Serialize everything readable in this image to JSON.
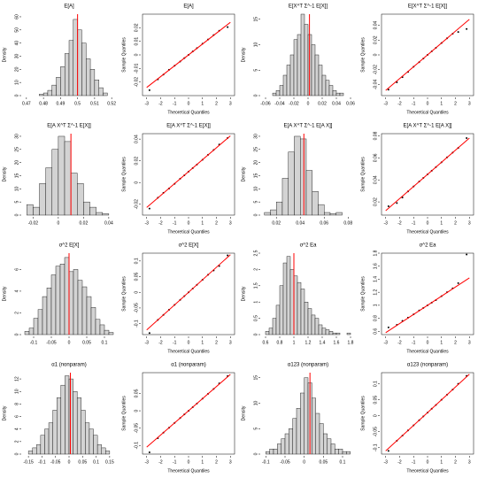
{
  "chart_data": [
    {
      "type": "histogram",
      "title": "E[A]",
      "ylabel": "Density",
      "bins": [
        0.4775,
        0.48,
        0.4825,
        0.485,
        0.4875,
        0.49,
        0.4925,
        0.495,
        0.4975,
        0.5,
        0.5025,
        0.505,
        0.5075,
        0.51,
        0.5125,
        0.515,
        0.5175
      ],
      "counts": [
        1,
        2,
        4,
        8,
        14,
        22,
        32,
        42,
        58,
        50,
        40,
        28,
        20,
        12,
        6,
        2
      ],
      "color": "#d3d3d3",
      "vline": 0.5,
      "vline_color": "#ff0000",
      "xlim": [
        0.468,
        0.522
      ],
      "xticks": [
        0.47,
        0.48,
        0.49,
        0.5,
        0.51,
        0.52
      ],
      "ylim": [
        0,
        62
      ],
      "yticks": [
        0,
        10,
        20,
        30,
        40,
        50,
        60
      ]
    },
    {
      "type": "scatter",
      "title": "E[A]",
      "xlabel": "Theoretical Quantiles",
      "ylabel": "Sample Quantiles",
      "x": [
        -2.8,
        -2.2,
        -1.8,
        -1.4,
        -1,
        -0.6,
        -0.3,
        0,
        0.3,
        0.6,
        1,
        1.4,
        1.8,
        2.2,
        2.8
      ],
      "y": [
        -0.026,
        -0.018,
        -0.0145,
        -0.011,
        -0.008,
        -0.0049,
        -0.0024,
        0,
        0.0025,
        0.005,
        0.0082,
        0.0113,
        0.0146,
        0.0178,
        0.0205
      ],
      "ref_line": {
        "x": [
          -3,
          3
        ],
        "y": [
          -0.024,
          0.024
        ],
        "color": "#ff0000"
      },
      "xlim": [
        -3.3,
        3.3
      ],
      "xticks": [
        -3,
        -2,
        -1,
        0,
        1,
        2,
        3
      ],
      "ylim": [
        -0.03,
        0.03
      ],
      "yticks": [
        -0.02,
        -0.01,
        0,
        0.01,
        0.02
      ]
    },
    {
      "type": "histogram",
      "title": "E[X^T Σ^-1 E[X]]",
      "ylabel": "Density",
      "bins": [
        -0.05,
        -0.045,
        -0.04,
        -0.035,
        -0.03,
        -0.025,
        -0.02,
        -0.015,
        -0.01,
        -0.005,
        0,
        0.005,
        0.01,
        0.015,
        0.02,
        0.025,
        0.03,
        0.035,
        0.04,
        0.045,
        0.05
      ],
      "counts": [
        0.5,
        1,
        2,
        4,
        6,
        8,
        11,
        12,
        16,
        14,
        12,
        10,
        8,
        6,
        4,
        3,
        2,
        1,
        0.5,
        0.5
      ],
      "color": "#d3d3d3",
      "vline": 0.002,
      "vline_color": "#ff0000",
      "xlim": [
        -0.065,
        0.065
      ],
      "xticks": [
        -0.06,
        -0.04,
        -0.02,
        0,
        0.02,
        0.04,
        0.06
      ],
      "ylim": [
        0,
        16
      ],
      "yticks": [
        0,
        5,
        10,
        15
      ]
    },
    {
      "type": "scatter",
      "title": "E[X^T Σ^-1 E[X]]",
      "xlabel": "Theoretical Quantiles",
      "ylabel": "Sample Quantiles",
      "x": [
        -2.8,
        -2.2,
        -1.8,
        -1.4,
        -1,
        -0.6,
        -0.3,
        0,
        0.3,
        0.6,
        1,
        1.4,
        1.8,
        2.2,
        2.8
      ],
      "y": [
        -0.047,
        -0.037,
        -0.03,
        -0.023,
        -0.016,
        -0.0098,
        -0.0049,
        0,
        0.0048,
        0.0096,
        0.016,
        0.0224,
        0.0285,
        0.031,
        0.035
      ],
      "ref_line": {
        "x": [
          -3,
          3
        ],
        "y": [
          -0.048,
          0.048
        ],
        "color": "#ff0000"
      },
      "xlim": [
        -3.3,
        3.3
      ],
      "xticks": [
        -3,
        -2,
        -1,
        0,
        1,
        2,
        3
      ],
      "ylim": [
        -0.055,
        0.055
      ],
      "yticks": [
        -0.04,
        -0.02,
        0,
        0.02,
        0.04
      ]
    },
    {
      "type": "histogram",
      "title": "E[A X^T Σ^-1 E[X]]",
      "ylabel": "Density",
      "bins": [
        -0.025,
        -0.02,
        -0.015,
        -0.01,
        -0.005,
        0,
        0.005,
        0.01,
        0.015,
        0.02,
        0.025,
        0.03,
        0.035,
        0.04
      ],
      "counts": [
        4,
        3,
        12,
        18,
        25,
        30,
        28,
        16,
        12,
        5,
        3,
        1,
        0.5
      ],
      "color": "#d3d3d3",
      "vline": 0.01,
      "vline_color": "#ff0000",
      "xlim": [
        -0.028,
        0.045
      ],
      "xticks": [
        -0.02,
        0,
        0.02,
        0.04
      ],
      "ylim": [
        0,
        31
      ],
      "yticks": [
        0,
        5,
        10,
        15,
        20,
        25,
        30
      ]
    },
    {
      "type": "scatter",
      "title": "E[A X^T Σ^-1 E[X]]",
      "xlabel": "Theoretical Quantiles",
      "ylabel": "Sample Quantiles",
      "x": [
        -2.8,
        -2.2,
        -1.8,
        -1.4,
        -1,
        -0.6,
        -0.3,
        0,
        0.3,
        0.6,
        1,
        1.4,
        1.8,
        2.2,
        2.8
      ],
      "y": [
        -0.024,
        -0.014,
        -0.0095,
        -0.0055,
        -0.0012,
        0.0035,
        0.0067,
        0.01,
        0.0133,
        0.0166,
        0.021,
        0.0255,
        0.03,
        0.035,
        0.041
      ],
      "ref_line": {
        "x": [
          -3,
          3
        ],
        "y": [
          -0.023,
          0.043
        ],
        "color": "#ff0000"
      },
      "xlim": [
        -3.3,
        3.3
      ],
      "xticks": [
        -3,
        -2,
        -1,
        0,
        1,
        2,
        3
      ],
      "ylim": [
        -0.03,
        0.045
      ],
      "yticks": [
        -0.02,
        0,
        0.02,
        0.04
      ]
    },
    {
      "type": "histogram",
      "title": "E[A X^T Σ^-1 E[A X]]",
      "ylabel": "Density",
      "bins": [
        0.01,
        0.015,
        0.02,
        0.025,
        0.03,
        0.035,
        0.04,
        0.045,
        0.05,
        0.055,
        0.06,
        0.065,
        0.07,
        0.075
      ],
      "counts": [
        1,
        2,
        5,
        14,
        24,
        30,
        29,
        17,
        9,
        4,
        1,
        0.5,
        1
      ],
      "color": "#d3d3d3",
      "vline": 0.043,
      "vline_color": "#ff0000",
      "xlim": [
        0.008,
        0.085
      ],
      "xticks": [
        0.02,
        0.04,
        0.06,
        0.08
      ],
      "ylim": [
        0,
        31
      ],
      "yticks": [
        0,
        5,
        10,
        15,
        20,
        25,
        30
      ]
    },
    {
      "type": "scatter",
      "title": "E[A X^T Σ^-1 E[A X]]",
      "xlabel": "Theoretical Quantiles",
      "ylabel": "Sample Quantiles",
      "x": [
        -2.8,
        -2.2,
        -1.8,
        -1.4,
        -1,
        -0.6,
        -0.3,
        0,
        0.3,
        0.6,
        1,
        1.4,
        1.8,
        2.2,
        2.8
      ],
      "y": [
        0.016,
        0.019,
        0.024,
        0.0295,
        0.034,
        0.0385,
        0.0418,
        0.045,
        0.0483,
        0.0516,
        0.056,
        0.0605,
        0.0648,
        0.069,
        0.078
      ],
      "ref_line": {
        "x": [
          -3,
          3
        ],
        "y": [
          0.012,
          0.078
        ],
        "color": "#ff0000"
      },
      "xlim": [
        -3.3,
        3.3
      ],
      "xticks": [
        -3,
        -2,
        -1,
        0,
        1,
        2,
        3
      ],
      "ylim": [
        0.008,
        0.082
      ],
      "yticks": [
        0.02,
        0.04,
        0.06,
        0.08
      ]
    },
    {
      "type": "histogram",
      "title": "σ^2 E[X]",
      "ylabel": "Density",
      "bins": [
        -0.125,
        -0.1125,
        -0.1,
        -0.0875,
        -0.075,
        -0.0625,
        -0.05,
        -0.0375,
        -0.025,
        -0.0125,
        0,
        0.0125,
        0.025,
        0.0375,
        0.05,
        0.0625,
        0.075,
        0.0875,
        0.1,
        0.1125,
        0.125
      ],
      "counts": [
        0.3,
        0.6,
        1.5,
        2.3,
        3.5,
        4.3,
        5.5,
        6.3,
        6.5,
        7.1,
        5.8,
        6,
        5,
        4.4,
        3.5,
        2.5,
        1.4,
        0.9,
        0.4,
        0.2
      ],
      "color": "#d3d3d3",
      "vline": 0,
      "vline_color": "#ff0000",
      "xlim": [
        -0.13,
        0.13
      ],
      "xticks": [
        -0.1,
        -0.05,
        0,
        0.05,
        0.1
      ],
      "ylim": [
        0,
        7.5
      ],
      "yticks": [
        0,
        2,
        4,
        6
      ]
    },
    {
      "type": "scatter",
      "title": "σ^2 E[X]",
      "xlabel": "Theoretical Quantiles",
      "ylabel": "Sample Quantiles",
      "x": [
        -2.8,
        -2.2,
        -1.8,
        -1.4,
        -1,
        -0.6,
        -0.3,
        0,
        0.3,
        0.6,
        1,
        1.4,
        1.8,
        2.2,
        2.8
      ],
      "y": [
        -0.13,
        -0.088,
        -0.072,
        -0.056,
        -0.04,
        -0.024,
        -0.012,
        0,
        0.012,
        0.024,
        0.04,
        0.056,
        0.07,
        0.084,
        0.118
      ],
      "ref_line": {
        "x": [
          -3,
          3
        ],
        "y": [
          -0.12,
          0.12
        ],
        "color": "#ff0000"
      },
      "xlim": [
        -3.3,
        3.3
      ],
      "xticks": [
        -3,
        -2,
        -1,
        0,
        1,
        2,
        3
      ],
      "ylim": [
        -0.135,
        0.125
      ],
      "yticks": [
        -0.1,
        -0.05,
        0,
        0.05,
        0.1
      ]
    },
    {
      "type": "histogram",
      "title": "σ^2 Ea",
      "ylabel": "Density",
      "bins": [
        0.6,
        0.65,
        0.7,
        0.75,
        0.8,
        0.85,
        0.9,
        0.95,
        1,
        1.05,
        1.1,
        1.15,
        1.2,
        1.25,
        1.3,
        1.35,
        1.4,
        1.45,
        1.5,
        1.55,
        1.6,
        1.65,
        1.7,
        1.75,
        1.8
      ],
      "counts": [
        0.1,
        0.2,
        0.5,
        0.9,
        1.5,
        2.2,
        2.4,
        2,
        1.8,
        1.6,
        1.4,
        1,
        0.8,
        0.6,
        0.5,
        0.3,
        0.2,
        0.15,
        0.1,
        0.05,
        0.05,
        0,
        0,
        0.05
      ],
      "color": "#d3d3d3",
      "vline": 1,
      "vline_color": "#ff0000",
      "xlim": [
        0.55,
        1.85
      ],
      "xticks": [
        0.6,
        0.8,
        1,
        1.2,
        1.4,
        1.6,
        1.8
      ],
      "ylim": [
        0,
        2.5
      ],
      "yticks": [
        0,
        0.5,
        1,
        1.5,
        2,
        2.5
      ]
    },
    {
      "type": "scatter",
      "title": "σ^2 Ea",
      "xlabel": "Theoretical Quantiles",
      "ylabel": "Sample Quantiles",
      "x": [
        -2.8,
        -2.2,
        -1.8,
        -1.4,
        -1,
        -0.6,
        -0.3,
        0,
        0.3,
        0.6,
        1,
        1.4,
        1.8,
        2.2,
        2.8
      ],
      "y": [
        0.66,
        0.7,
        0.76,
        0.81,
        0.86,
        0.92,
        0.96,
        1,
        1.04,
        1.08,
        1.14,
        1.2,
        1.26,
        1.34,
        1.78
      ],
      "ref_line": {
        "x": [
          -3,
          3
        ],
        "y": [
          0.58,
          1.42
        ],
        "color": "#ff0000"
      },
      "xlim": [
        -3.3,
        3.3
      ],
      "xticks": [
        -3,
        -2,
        -1,
        0,
        1,
        2,
        3
      ],
      "ylim": [
        0.55,
        1.8
      ],
      "yticks": [
        0.6,
        0.8,
        1,
        1.2,
        1.4,
        1.6,
        1.8
      ]
    },
    {
      "type": "histogram",
      "title": "α1 (nonparam)",
      "ylabel": "Density",
      "bins": [
        -0.15,
        -0.135,
        -0.12,
        -0.105,
        -0.09,
        -0.075,
        -0.06,
        -0.045,
        -0.03,
        -0.015,
        0,
        0.015,
        0.03,
        0.045,
        0.06,
        0.075,
        0.09,
        0.105,
        0.12,
        0.135,
        0.15
      ],
      "counts": [
        0.5,
        1,
        1.5,
        3,
        4,
        5,
        7,
        9,
        11,
        12.5,
        12,
        10,
        9,
        7,
        5,
        4,
        3,
        1.5,
        1,
        0.5
      ],
      "color": "#d3d3d3",
      "vline": 0.005,
      "vline_color": "#ff0000",
      "xlim": [
        -0.17,
        0.17
      ],
      "xticks": [
        -0.15,
        -0.1,
        -0.05,
        0,
        0.05,
        0.1,
        0.15
      ],
      "ylim": [
        0,
        13
      ],
      "yticks": [
        0,
        2,
        4,
        6,
        8,
        10,
        12
      ]
    },
    {
      "type": "scatter",
      "title": "α1 (nonparam)",
      "xlabel": "Theoretical Quantiles",
      "ylabel": "Sample Quantiles",
      "x": [
        -2.8,
        -2.2,
        -1.8,
        -1.4,
        -1,
        -0.6,
        -0.3,
        0,
        0.3,
        0.6,
        1,
        1.4,
        1.8,
        2.2,
        2.8
      ],
      "y": [
        -0.12,
        -0.079,
        -0.063,
        -0.049,
        -0.035,
        -0.021,
        -0.0105,
        0,
        0.0105,
        0.021,
        0.035,
        0.049,
        0.063,
        0.079,
        0.1
      ],
      "ref_line": {
        "x": [
          -3,
          3
        ],
        "y": [
          -0.105,
          0.105
        ],
        "color": "#ff0000"
      },
      "xlim": [
        -3.3,
        3.3
      ],
      "xticks": [
        -3,
        -2,
        -1,
        0,
        1,
        2,
        3
      ],
      "ylim": [
        -0.125,
        0.11
      ],
      "yticks": [
        -0.1,
        -0.05,
        0,
        0.05
      ]
    },
    {
      "type": "histogram",
      "title": "α123 (nonparam)",
      "ylabel": "Density",
      "bins": [
        -0.1,
        -0.09,
        -0.08,
        -0.07,
        -0.06,
        -0.05,
        -0.04,
        -0.03,
        -0.02,
        -0.01,
        0,
        0.01,
        0.02,
        0.03,
        0.04,
        0.05,
        0.06,
        0.07,
        0.08,
        0.09,
        0.1,
        0.11,
        0.12
      ],
      "counts": [
        0.5,
        1,
        1,
        2,
        3,
        4,
        5,
        7,
        9,
        12,
        15,
        14,
        11,
        8,
        6,
        4,
        3,
        2,
        1,
        1,
        0.5,
        0.5
      ],
      "color": "#d3d3d3",
      "vline": 0.015,
      "vline_color": "#ff0000",
      "xlim": [
        -0.11,
        0.13
      ],
      "xticks": [
        -0.1,
        -0.05,
        0,
        0.05,
        0.1
      ],
      "ylim": [
        0,
        16
      ],
      "yticks": [
        0,
        5,
        10,
        15
      ]
    },
    {
      "type": "scatter",
      "title": "α123 (nonparam)",
      "xlabel": "Theoretical Quantiles",
      "ylabel": "Sample Quantiles",
      "x": [
        -2.8,
        -2.2,
        -1.8,
        -1.4,
        -1,
        -0.6,
        -0.3,
        0,
        0.3,
        0.6,
        1,
        1.4,
        1.8,
        2.2,
        2.8
      ],
      "y": [
        -0.11,
        -0.078,
        -0.062,
        -0.046,
        -0.03,
        -0.014,
        -0.002,
        0.01,
        0.022,
        0.034,
        0.05,
        0.066,
        0.082,
        0.1,
        0.125
      ],
      "ref_line": {
        "x": [
          -3,
          3
        ],
        "y": [
          -0.11,
          0.13
        ],
        "color": "#ff0000"
      },
      "xlim": [
        -3.3,
        3.3
      ],
      "xticks": [
        -3,
        -2,
        -1,
        0,
        1,
        2,
        3
      ],
      "ylim": [
        -0.12,
        0.135
      ],
      "yticks": [
        -0.1,
        -0.05,
        0,
        0.05,
        0.1
      ]
    }
  ]
}
